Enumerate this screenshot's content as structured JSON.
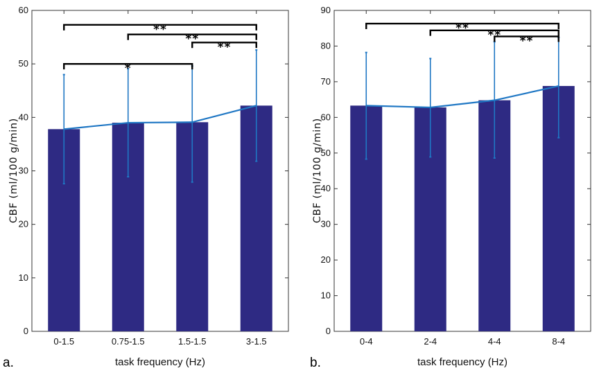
{
  "colors": {
    "bar": "#2e2a83",
    "line": "#1f77c4",
    "error": "#1f77c4",
    "bracket": "#000000",
    "axis": "#333333"
  },
  "chart_data": [
    {
      "type": "bar",
      "panel_label": "a.",
      "xlabel": "task frequency (Hz)",
      "ylabel": "CBF (ml/100 g/min)",
      "ylim": [
        0,
        60
      ],
      "yticks": [
        "0",
        "10",
        "20",
        "30",
        "40",
        "50",
        "60"
      ],
      "categories": [
        "0-1.5",
        "0.75-1.5",
        "1.5-1.5",
        "3-1.5"
      ],
      "values": [
        37.8,
        39.0,
        39.1,
        42.2
      ],
      "error_low": [
        27.6,
        28.9,
        27.9,
        31.8
      ],
      "error_high": [
        48.0,
        49.1,
        49.6,
        52.6
      ],
      "line_values": [
        37.8,
        39.0,
        39.1,
        42.2
      ],
      "significance": [
        {
          "from": 0,
          "to": 3,
          "height": 57.3,
          "label": "**"
        },
        {
          "from": 1,
          "to": 3,
          "height": 55.5,
          "label": "**"
        },
        {
          "from": 2,
          "to": 3,
          "height": 54.0,
          "label": "**"
        },
        {
          "from": 0,
          "to": 2,
          "height": 50.0,
          "label": "*"
        }
      ]
    },
    {
      "type": "bar",
      "panel_label": "b.",
      "xlabel": "task frequency (Hz)",
      "ylabel": "CBF (ml/100 g/min)",
      "ylim": [
        0,
        90
      ],
      "yticks": [
        "0",
        "10",
        "20",
        "30",
        "40",
        "50",
        "60",
        "70",
        "80",
        "90"
      ],
      "categories": [
        "0-4",
        "2-4",
        "4-4",
        "8-4"
      ],
      "values": [
        63.3,
        62.8,
        64.8,
        68.8
      ],
      "error_low": [
        48.3,
        48.9,
        48.6,
        54.3
      ],
      "error_high": [
        78.2,
        76.5,
        81.2,
        82.4
      ],
      "line_values": [
        63.3,
        62.8,
        64.8,
        68.8
      ],
      "significance": [
        {
          "from": 0,
          "to": 3,
          "height": 86.3,
          "label": "**"
        },
        {
          "from": 1,
          "to": 3,
          "height": 84.4,
          "label": "**"
        },
        {
          "from": 2,
          "to": 3,
          "height": 82.7,
          "label": "**"
        }
      ]
    }
  ]
}
